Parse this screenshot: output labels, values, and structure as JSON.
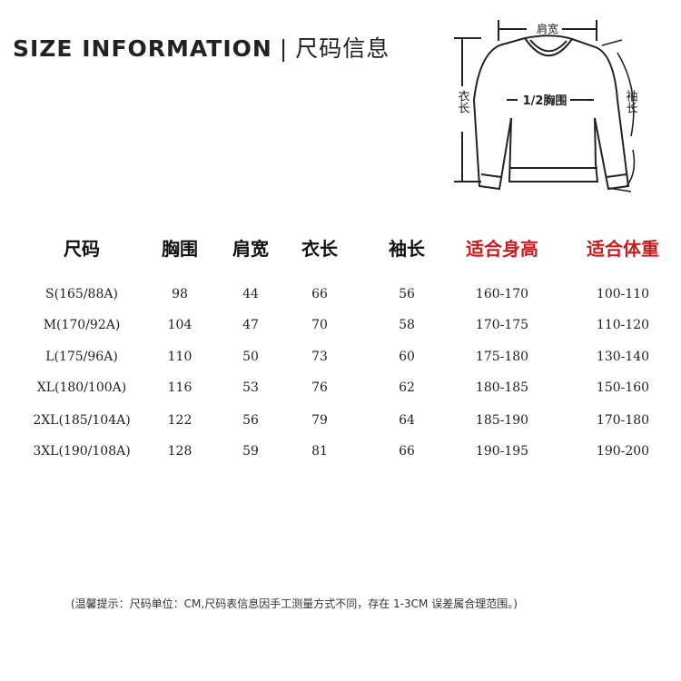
{
  "title": {
    "en": "SIZE INFORMATION",
    "separator": "|",
    "cn": "尺码信息"
  },
  "diagram": {
    "shoulder": "肩宽",
    "chest": "1/2胸围",
    "length": "衣长",
    "sleeve": "袖长"
  },
  "table": {
    "headers": [
      "尺码",
      "胸围",
      "肩宽",
      "衣长",
      "袖长",
      "适合身高",
      "适合体重"
    ],
    "header_colors": [
      "#111111",
      "#111111",
      "#111111",
      "#111111",
      "#111111",
      "#c81e1e",
      "#c81e1e"
    ],
    "rows": [
      [
        "S(165/88A)",
        "98",
        "44",
        "66",
        "56",
        "160-170",
        "100-110"
      ],
      [
        "M(170/92A)",
        "104",
        "47",
        "70",
        "58",
        "170-175",
        "110-120"
      ],
      [
        "L(175/96A)",
        "110",
        "50",
        "73",
        "60",
        "175-180",
        "130-140"
      ],
      [
        "XL(180/100A)",
        "116",
        "53",
        "76",
        "62",
        "180-185",
        "150-160"
      ],
      [
        "2XL(185/104A)",
        "122",
        "56",
        "79",
        "64",
        "185-190",
        "170-180"
      ],
      [
        "3XL(190/108A)",
        "128",
        "59",
        "81",
        "66",
        "190-195",
        "190-200"
      ]
    ]
  },
  "note": "(温馨提示：尺码单位：CM,尺码表信息因手工测量方式不同，存在 1-3CM 误差属合理范围。)"
}
